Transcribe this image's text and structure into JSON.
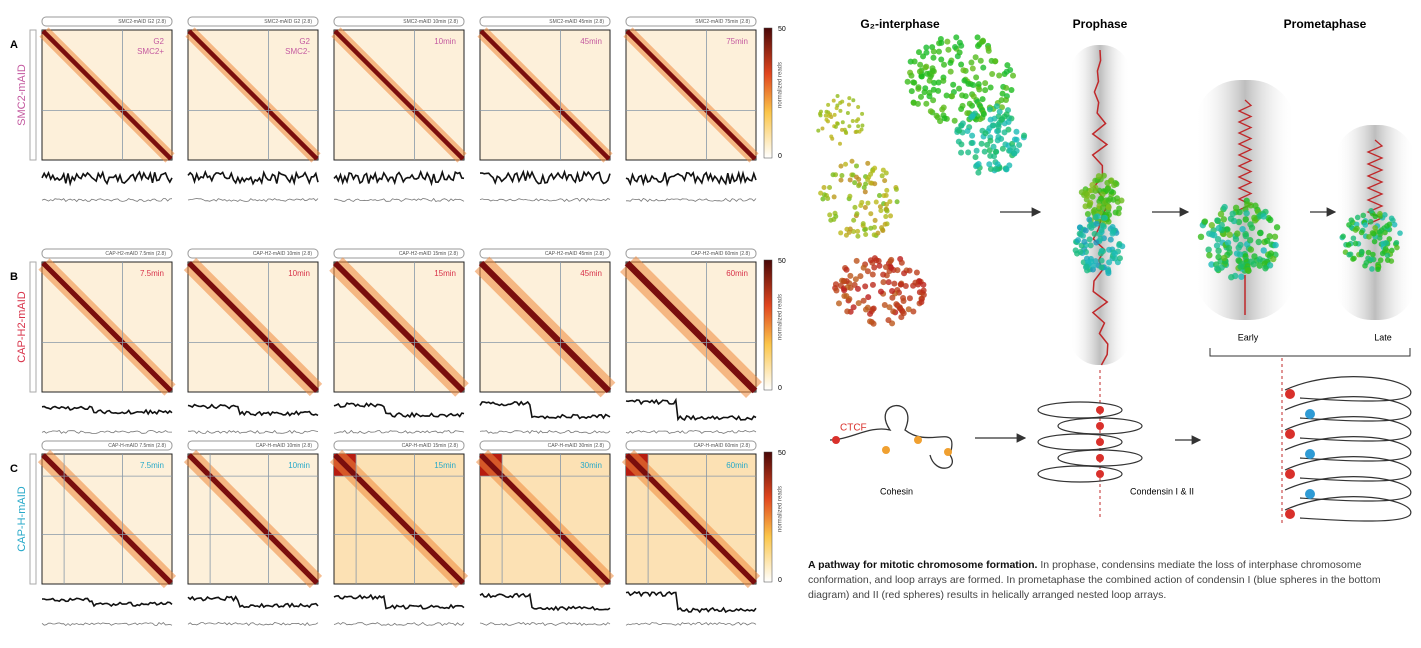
{
  "panels": [
    {
      "letter": "A",
      "label": "SMC2-mAID",
      "headers": [
        "SMC2-mAID G2 (2.8)",
        "SMC2-mAID G2 (2.8)",
        "SMC2-mAID 10min (2.8)",
        "SMC2-mAID 45min (2.8)",
        "SMC2-mAID 75min (2.8)"
      ],
      "times": [
        [
          "G2",
          "SMC2+"
        ],
        [
          "G2",
          "SMC2-"
        ],
        [
          "10min"
        ],
        [
          "45min"
        ],
        [
          "75min"
        ]
      ]
    },
    {
      "letter": "B",
      "label": "CAP-H2-mAID",
      "headers": [
        "CAP-H2-mAID 7.5min (2.8)",
        "CAP-H2-mAID 10min (2.8)",
        "CAP-H2-mAID 15min (2.8)",
        "CAP-H2-mAID 45min (2.8)",
        "CAP-H2-mAID 60min (2.8)"
      ],
      "times": [
        [
          "7.5min"
        ],
        [
          "10min"
        ],
        [
          "15min"
        ],
        [
          "45min"
        ],
        [
          "60min"
        ]
      ]
    },
    {
      "letter": "C",
      "label": "CAP-H-mAID",
      "headers": [
        "CAP-H-mAID 7.5min (2.8)",
        "CAP-H-mAID 10min (2.8)",
        "CAP-H-mAID 15min (2.8)",
        "CAP-H-mAID 30min (2.8)",
        "CAP-H-mAID 60min (2.8)"
      ],
      "times": [
        [
          "7.5min"
        ],
        [
          "10min"
        ],
        [
          "15min"
        ],
        [
          "30min"
        ],
        [
          "60min"
        ]
      ]
    }
  ],
  "colorbar": {
    "max": "50",
    "min": "0",
    "label": "normalized reads"
  },
  "diagram": {
    "stages": [
      "G₂-interphase",
      "Prophase",
      "Prometaphase"
    ],
    "substages": [
      "Early",
      "Late"
    ],
    "ctcf": "CTCF",
    "cohesin": "Cohesin",
    "condensin": "Condensin I & II"
  },
  "caption": {
    "title": "A pathway for mitotic chromosome formation.",
    "body": "In prophase, condensins mediate the loss of interphase chromosome conformation, and loop arrays are formed. In prometaphase the combined action of condensin I (blue spheres in the bottom diagram) and II (red spheres) results in helically arranged nested loop arrays."
  }
}
